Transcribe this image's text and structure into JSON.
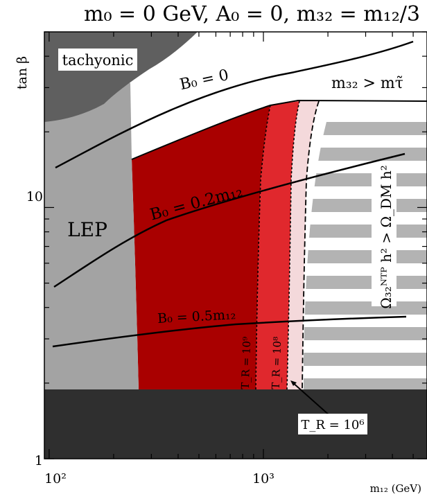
{
  "chart_data": {
    "type": "area",
    "title": "m₀ = 0 GeV, A₀ = 0, m₃₂ = m₁₂/3",
    "xlabel": "m₁₂ (GeV)",
    "ylabel": "tan β",
    "x_scale": "log",
    "y_scale": "log",
    "xlim": [
      95,
      5800
    ],
    "ylim": [
      1,
      50
    ],
    "x_ticks": [
      {
        "value": 100,
        "label": "10²"
      },
      {
        "value": 1000,
        "label": "10³"
      }
    ],
    "y_ticks": [
      {
        "value": 1,
        "label": "1"
      },
      {
        "value": 10,
        "label": "10"
      }
    ],
    "regions": [
      {
        "name": "tachyonic",
        "label": "tachyonic",
        "color": "#5f5f5f"
      },
      {
        "name": "lep",
        "label": "LEP",
        "color": "#a3a3a3"
      },
      {
        "name": "lower-excluded",
        "label": "",
        "color": "#2f2f2f"
      },
      {
        "name": "stau-lsp",
        "label": "m₃₂ > mτ̃",
        "color": "#ffffff"
      },
      {
        "name": "overclosure",
        "label": "Ω₃₂ᴺᵀᴾ h² > Ω_DM h²",
        "color": "#b3b3b3"
      },
      {
        "name": "tr-1e9",
        "label": "",
        "color": "#a90000"
      },
      {
        "name": "tr-1e8",
        "label": "",
        "color": "#e0282d"
      },
      {
        "name": "tr-1e6",
        "label": "",
        "color": "#f4d9db"
      }
    ],
    "series": [
      {
        "name": "B₀ = 0",
        "x": [
          100,
          160,
          300,
          600,
          1000,
          2000,
          3500,
          5500
        ],
        "y": [
          12.3,
          15.7,
          20.4,
          24.7,
          28.8,
          34.3,
          38.8,
          42.4
        ]
      },
      {
        "name": "B₀ = 0.2m₁₂",
        "x": [
          100,
          150,
          200,
          300,
          500,
          1000,
          2000,
          5500
        ],
        "y": [
          4.3,
          5.6,
          6.3,
          7.2,
          8.3,
          9.5,
          11.1,
          14.5
        ]
      },
      {
        "name": "B₀ = 0.5m₁₂",
        "x": [
          100,
          200,
          300,
          500,
          1000,
          2000,
          5500
        ],
        "y": [
          2.65,
          2.78,
          2.88,
          3.0,
          3.15,
          3.2,
          3.3
        ]
      }
    ],
    "contours": [
      {
        "name": "T_R = 10⁹",
        "label": "T_R = 10⁹",
        "x": [
          1010,
          960,
          920,
          900,
          880
        ],
        "y": [
          21.8,
          16,
          8,
          3,
          1.8
        ]
      },
      {
        "name": "T_R = 10⁸",
        "label": "T_R = 10⁸",
        "x": [
          1280,
          1270,
          1255,
          1235,
          1210
        ],
        "y": [
          22,
          15,
          8,
          3,
          1.8
        ]
      },
      {
        "name": "T_R = 10⁶",
        "label": "T_R = 10⁶",
        "x": [
          1720,
          1610,
          1540,
          1500,
          1470
        ],
        "y": [
          22,
          15,
          8,
          3,
          1.8
        ]
      }
    ]
  }
}
